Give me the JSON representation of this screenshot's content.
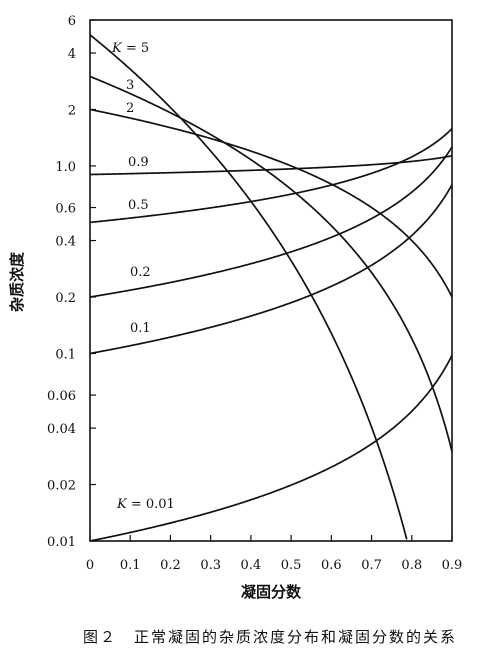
{
  "chart_data": {
    "type": "line",
    "xlabel": "凝固分数",
    "ylabel": "杂质浓度",
    "caption": "图２　正常凝固的杂质浓度分布和凝固分数的关系",
    "x_scale": "linear",
    "y_scale": "log",
    "xlim": [
      0,
      0.9
    ],
    "ylim": [
      0.01,
      6
    ],
    "x_ticks": [
      "0",
      "0.1",
      "0.2",
      "0.3",
      "0.4",
      "0.5",
      "0.6",
      "0.7",
      "0.8",
      "0.9"
    ],
    "y_ticks": [
      "0.01",
      "0.02",
      "0.04",
      "0.06",
      "0.1",
      "0.2",
      "0.4",
      "0.6",
      "1.0",
      "2",
      "4",
      "6"
    ],
    "y_tick_values": [
      0.01,
      0.02,
      0.04,
      0.06,
      0.1,
      0.2,
      0.4,
      0.6,
      1.0,
      2,
      4,
      6
    ],
    "series": [
      {
        "name": "K = 5",
        "k": 5,
        "prefix": "K",
        "suffix": " = 5",
        "x": [
          0,
          0.1,
          0.2,
          0.3,
          0.4,
          0.5,
          0.6,
          0.7,
          0.75,
          0.79
        ],
        "y": [
          5,
          3.3,
          2.05,
          1.2,
          0.65,
          0.31,
          0.13,
          0.04,
          0.02,
          0.01
        ]
      },
      {
        "name": "3",
        "k": 3,
        "prefix": "",
        "suffix": "3",
        "x": [
          0,
          0.1,
          0.2,
          0.3,
          0.4,
          0.5,
          0.6,
          0.7,
          0.8,
          0.9
        ],
        "y": [
          3,
          2.43,
          1.92,
          1.47,
          1.08,
          0.75,
          0.48,
          0.27,
          0.12,
          0.03
        ]
      },
      {
        "name": "2",
        "k": 2,
        "prefix": "",
        "suffix": "2",
        "x": [
          0,
          0.1,
          0.2,
          0.3,
          0.4,
          0.5,
          0.6,
          0.7,
          0.8,
          0.9
        ],
        "y": [
          2,
          1.8,
          1.6,
          1.4,
          1.2,
          1.0,
          0.8,
          0.6,
          0.4,
          0.2
        ]
      },
      {
        "name": "0.9",
        "k": 0.9,
        "prefix": "",
        "suffix": "0.9",
        "x": [
          0,
          0.1,
          0.2,
          0.3,
          0.4,
          0.5,
          0.6,
          0.7,
          0.8,
          0.9
        ],
        "y": [
          0.9,
          0.91,
          0.92,
          0.93,
          0.95,
          0.97,
          0.99,
          1.02,
          1.08,
          1.17
        ]
      },
      {
        "name": "0.5",
        "k": 0.5,
        "prefix": "",
        "suffix": "0.5",
        "x": [
          0,
          0.1,
          0.2,
          0.3,
          0.4,
          0.5,
          0.6,
          0.7,
          0.8,
          0.9
        ],
        "y": [
          0.5,
          0.53,
          0.56,
          0.6,
          0.65,
          0.71,
          0.79,
          0.91,
          1.12,
          1.58
        ]
      },
      {
        "name": "0.2",
        "k": 0.2,
        "prefix": "",
        "suffix": "0.2",
        "x": [
          0,
          0.1,
          0.2,
          0.3,
          0.4,
          0.5,
          0.6,
          0.7,
          0.8,
          0.9
        ],
        "y": [
          0.2,
          0.218,
          0.239,
          0.266,
          0.3,
          0.348,
          0.416,
          0.524,
          0.725,
          1.26
        ]
      },
      {
        "name": "0.1",
        "k": 0.1,
        "prefix": "",
        "suffix": "0.1",
        "x": [
          0,
          0.1,
          0.2,
          0.3,
          0.4,
          0.5,
          0.6,
          0.7,
          0.8,
          0.9
        ],
        "y": [
          0.1,
          0.11,
          0.122,
          0.138,
          0.158,
          0.186,
          0.228,
          0.296,
          0.426,
          0.794
        ]
      },
      {
        "name": "K = 0.01",
        "k": 0.01,
        "prefix": "K",
        "suffix": " = 0.01",
        "x": [
          0,
          0.1,
          0.2,
          0.3,
          0.4,
          0.5,
          0.6,
          0.7,
          0.8,
          0.9
        ],
        "y": [
          0.01,
          0.0111,
          0.0125,
          0.0142,
          0.0166,
          0.0199,
          0.0248,
          0.0329,
          0.0492,
          0.0977
        ]
      }
    ]
  }
}
